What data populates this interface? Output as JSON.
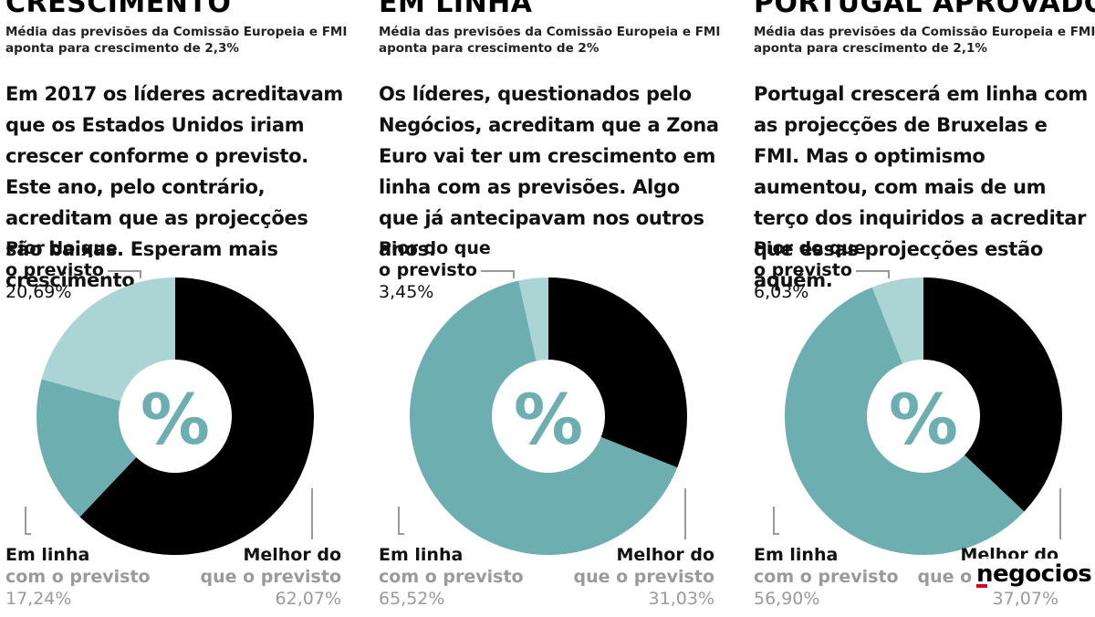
{
  "colors": {
    "melhor": "#000000",
    "em_linha": "#6dafb0",
    "pior": "#abd4d4",
    "leader": "#999999"
  },
  "labels": {
    "pior_line1": "Pior do que",
    "pior_line2": "o previsto",
    "em_linha_line1": "Em linha",
    "em_linha_line2": "com o previsto",
    "melhor_line1": "Melhor do",
    "melhor_line2": "que o previsto",
    "center_symbol": "%"
  },
  "panels": [
    {
      "title": "CRESCIMENTO",
      "subtitle": "Média das previsões da Comissão Europeia e FMI aponta para crescimento de 2,3%",
      "body": "Em 2017 os líderes acreditavam que os Estados Unidos iriam crescer conforme o previsto. Este ano, pelo contrário, acreditam que as projecções são baixas. Esperam mais crescimento.",
      "pior_pct": "20,69%",
      "em_linha_pct": "17,24%",
      "melhor_pct": "62,07%"
    },
    {
      "title": "EM LINHA",
      "subtitle": "Média das previsões da Comissão Europeia e FMI aponta para crescimento de 2%",
      "body": "Os líderes, questionados pelo Negócios, acreditam que a Zona Euro vai ter um crescimento em linha com as previsões. Algo que já antecipavam nos outros anos.",
      "pior_pct": "3,45%",
      "em_linha_pct": "65,52%",
      "melhor_pct": "31,03%"
    },
    {
      "title": "PORTUGAL APROVADO",
      "subtitle": "Média das previsões da Comissão Europeia e FMI aponta para crescimento de 2,1%",
      "body": "Portugal crescerá em linha com as projecções de Bruxelas e FMI. Mas o optimismo aumentou, com mais de um terço dos inquiridos a acreditar que essas projecções estão aquém.",
      "pior_pct": "6,03%",
      "em_linha_pct": "56,90%",
      "melhor_pct": "37,07%"
    }
  ],
  "chart_data": [
    {
      "type": "pie",
      "title": "CRESCIMENTO",
      "categories": [
        "Melhor do que o previsto",
        "Em linha com o previsto",
        "Pior do que o previsto"
      ],
      "values": [
        62.07,
        17.24,
        20.69
      ]
    },
    {
      "type": "pie",
      "title": "EM LINHA",
      "categories": [
        "Melhor do que o previsto",
        "Em linha com o previsto",
        "Pior do que o previsto"
      ],
      "values": [
        31.03,
        65.52,
        3.45
      ]
    },
    {
      "type": "pie",
      "title": "PORTUGAL APROVADO",
      "categories": [
        "Melhor do que o previsto",
        "Em linha com o previsto",
        "Pior do que o previsto"
      ],
      "values": [
        37.07,
        56.9,
        6.03
      ]
    }
  ],
  "logo": {
    "text": "negocios"
  }
}
